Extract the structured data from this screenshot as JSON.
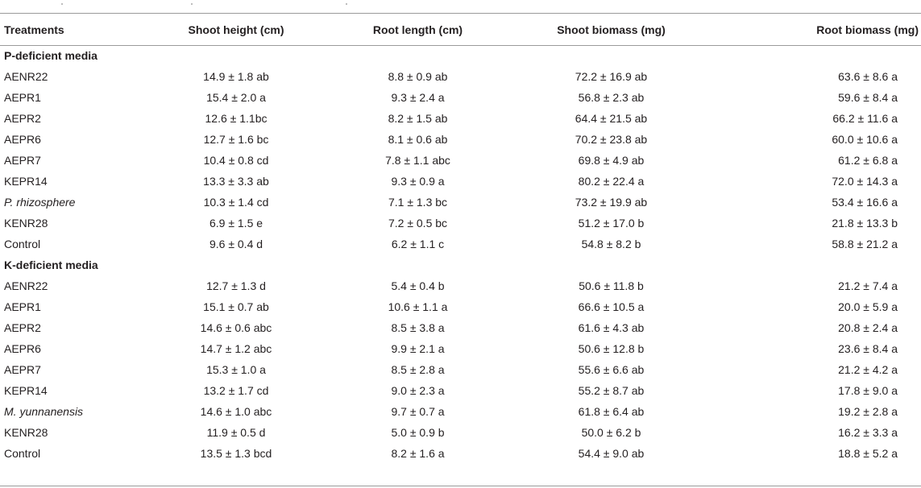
{
  "table": {
    "headers": [
      "Treatments",
      "Shoot height (cm)",
      "Root length (cm)",
      "Shoot biomass (mg)",
      "Root biomass (mg)"
    ],
    "sections": [
      {
        "title": "P-deficient media",
        "rows": [
          {
            "treatment": "AENR22",
            "italic": false,
            "shoot_height": "14.9 ± 1.8 ab",
            "root_length": "8.8 ± 0.9 ab",
            "shoot_biomass": "72.2 ± 16.9 ab",
            "root_biomass": "63.6 ± 8.6 a"
          },
          {
            "treatment": "AEPR1",
            "italic": false,
            "shoot_height": "15.4 ± 2.0 a",
            "root_length": "9.3 ± 2.4 a",
            "shoot_biomass": "56.8 ± 2.3 ab",
            "root_biomass": "59.6 ± 8.4 a"
          },
          {
            "treatment": "AEPR2",
            "italic": false,
            "shoot_height": "12.6 ± 1.1bc",
            "root_length": "8.2 ± 1.5 ab",
            "shoot_biomass": "64.4 ± 21.5 ab",
            "root_biomass": "66.2 ± 11.6 a"
          },
          {
            "treatment": "AEPR6",
            "italic": false,
            "shoot_height": "12.7 ± 1.6 bc",
            "root_length": "8.1 ± 0.6 ab",
            "shoot_biomass": "70.2 ± 23.8 ab",
            "root_biomass": "60.0 ± 10.6 a"
          },
          {
            "treatment": "AEPR7",
            "italic": false,
            "shoot_height": "10.4 ± 0.8 cd",
            "root_length": "7.8 ± 1.1 abc",
            "shoot_biomass": "69.8 ± 4.9 ab",
            "root_biomass": "61.2 ± 6.8 a"
          },
          {
            "treatment": "KEPR14",
            "italic": false,
            "shoot_height": "13.3 ± 3.3 ab",
            "root_length": "9.3 ± 0.9 a",
            "shoot_biomass": "80.2 ± 22.4 a",
            "root_biomass": "72.0 ± 14.3 a"
          },
          {
            "treatment": "P. rhizosphere",
            "italic": true,
            "shoot_height": "10.3 ± 1.4 cd",
            "root_length": "7.1 ± 1.3 bc",
            "shoot_biomass": "73.2 ± 19.9 ab",
            "root_biomass": "53.4 ± 16.6 a"
          },
          {
            "treatment": "KENR28",
            "italic": false,
            "shoot_height": "6.9 ± 1.5 e",
            "root_length": "7.2 ± 0.5 bc",
            "shoot_biomass": "51.2 ± 17.0 b",
            "root_biomass": "21.8 ± 13.3 b"
          },
          {
            "treatment": "Control",
            "italic": false,
            "shoot_height": "9.6 ± 0.4 d",
            "root_length": "6.2 ± 1.1 c",
            "shoot_biomass": "54.8 ± 8.2 b",
            "root_biomass": "58.8 ± 21.2 a"
          }
        ]
      },
      {
        "title": "K-deficient media",
        "rows": [
          {
            "treatment": "AENR22",
            "italic": false,
            "shoot_height": "12.7 ± 1.3 d",
            "root_length": "5.4 ± 0.4 b",
            "shoot_biomass": "50.6 ± 11.8 b",
            "root_biomass": "21.2 ± 7.4 a"
          },
          {
            "treatment": "AEPR1",
            "italic": false,
            "shoot_height": "15.1 ± 0.7 ab",
            "root_length": "10.6 ± 1.1 a",
            "shoot_biomass": "66.6 ± 10.5 a",
            "root_biomass": "20.0 ± 5.9 a"
          },
          {
            "treatment": "AEPR2",
            "italic": false,
            "shoot_height": "14.6 ± 0.6 abc",
            "root_length": "8.5 ± 3.8 a",
            "shoot_biomass": "61.6 ± 4.3 ab",
            "root_biomass": "20.8 ± 2.4 a"
          },
          {
            "treatment": "AEPR6",
            "italic": false,
            "shoot_height": "14.7 ± 1.2 abc",
            "root_length": "9.9 ± 2.1 a",
            "shoot_biomass": "50.6 ± 12.8 b",
            "root_biomass": "23.6 ± 8.4 a"
          },
          {
            "treatment": "AEPR7",
            "italic": false,
            "shoot_height": "15.3 ± 1.0 a",
            "root_length": "8.5 ± 2.8 a",
            "shoot_biomass": "55.6 ± 6.6 ab",
            "root_biomass": "21.2 ± 4.2 a"
          },
          {
            "treatment": "KEPR14",
            "italic": false,
            "shoot_height": "13.2 ± 1.7 cd",
            "root_length": "9.0 ± 2.3 a",
            "shoot_biomass": "55.2 ± 8.7 ab",
            "root_biomass": "17.8 ± 9.0 a"
          },
          {
            "treatment": "M. yunnanensis",
            "italic": true,
            "shoot_height": "14.6 ± 1.0 abc",
            "root_length": "9.7 ± 0.7 a",
            "shoot_biomass": "61.8 ± 6.4 ab",
            "root_biomass": "19.2 ± 2.8 a"
          },
          {
            "treatment": "KENR28",
            "italic": false,
            "shoot_height": "11.9 ± 0.5 d",
            "root_length": "5.0 ± 0.9 b",
            "shoot_biomass": "50.0 ± 6.2 b",
            "root_biomass": "16.2 ± 3.3 a"
          },
          {
            "treatment": "Control",
            "italic": false,
            "shoot_height": "13.5 ± 1.3 bcd",
            "root_length": "8.2 ± 1.6 a",
            "shoot_biomass": "54.4 ± 9.0 ab",
            "root_biomass": "18.8 ± 5.2 a"
          }
        ]
      }
    ]
  }
}
